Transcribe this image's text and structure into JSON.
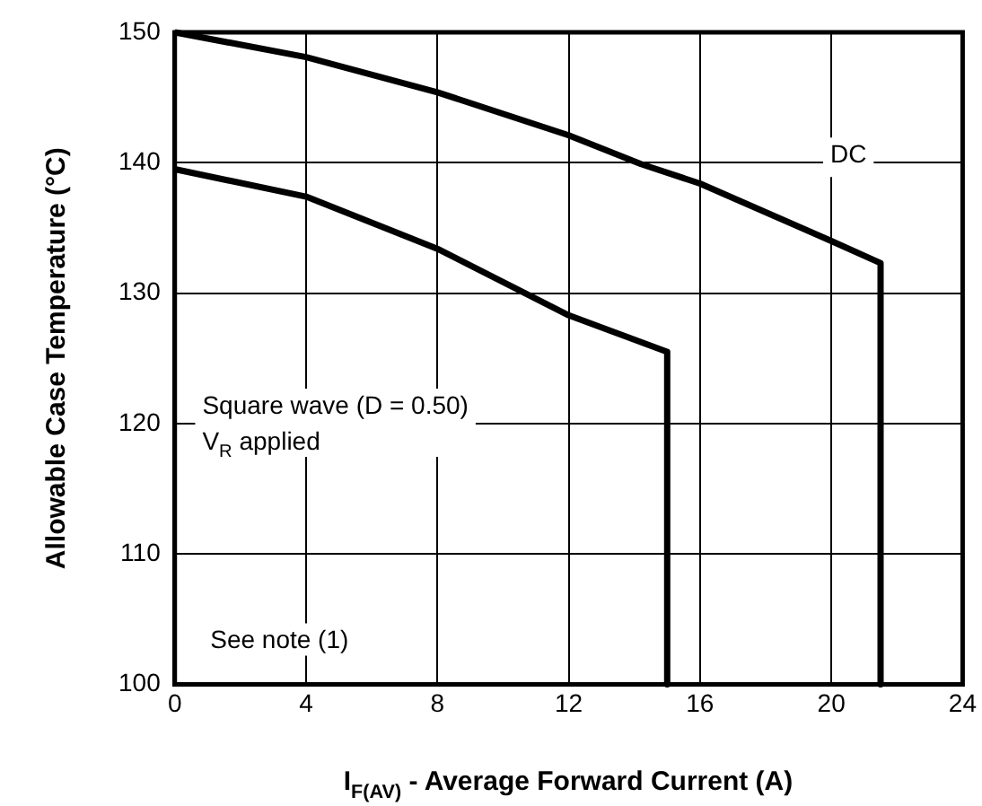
{
  "chart_data": {
    "type": "line",
    "xlabel": "I$_{F(AV)}$ - Average Forward Current (A)",
    "ylabel": "Allowable Case Temperature (°C)",
    "xlim": [
      0,
      24
    ],
    "xticks": [
      0,
      4,
      8,
      12,
      16,
      20,
      24
    ],
    "ylim": [
      100,
      150
    ],
    "yticks": [
      100,
      110,
      120,
      130,
      140,
      150
    ],
    "grid": true,
    "legend": false,
    "marker": "none",
    "line_style": "solid",
    "series": [
      {
        "name": "DC",
        "color": "#000000",
        "x": [
          0,
          4,
          8,
          12,
          14.2,
          16,
          20,
          21.5,
          21.5
        ],
        "values": [
          150,
          148.1,
          145.4,
          142.1,
          139.9,
          138.4,
          134,
          132.3,
          100
        ]
      },
      {
        "color": "#000000",
        "x": [
          0,
          4,
          8,
          12,
          15,
          15
        ],
        "values": [
          139.5,
          137.4,
          133.4,
          128.3,
          125.5,
          100
        ]
      }
    ],
    "annotations": [
      "Square wave (D = 0.50)\nV$_{R}$ applied",
      "See note (1)"
    ]
  }
}
